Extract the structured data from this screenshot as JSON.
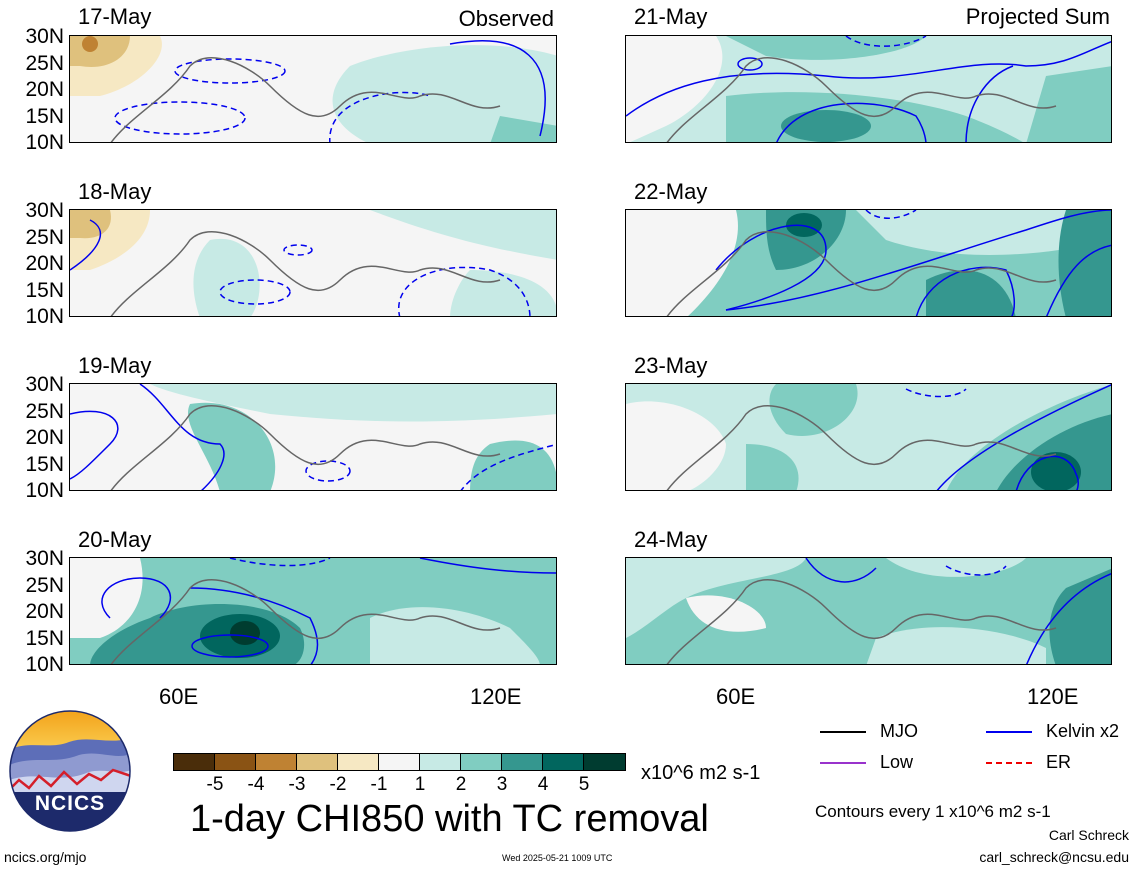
{
  "left_title": "Observed",
  "right_title": "Projected Sum",
  "lat_labels": [
    "30N",
    "25N",
    "20N",
    "15N",
    "10N"
  ],
  "lon_labels_left": [
    "60E",
    "120E"
  ],
  "lon_labels_right": [
    "60E",
    "120E"
  ],
  "panels": [
    {
      "date": "17-May",
      "col": "left"
    },
    {
      "date": "18-May",
      "col": "left"
    },
    {
      "date": "19-May",
      "col": "left"
    },
    {
      "date": "20-May",
      "col": "left"
    },
    {
      "date": "21-May",
      "col": "right"
    },
    {
      "date": "22-May",
      "col": "right"
    },
    {
      "date": "23-May",
      "col": "right"
    },
    {
      "date": "24-May",
      "col": "right"
    }
  ],
  "colorbar": {
    "ticks": [
      "-5",
      "-4",
      "-3",
      "-2",
      "-1",
      "1",
      "2",
      "3",
      "4",
      "5"
    ],
    "units": "x10^6 m2 s-1",
    "colors": [
      "#4a2d0a",
      "#8a5314",
      "#bf8233",
      "#dfc17d",
      "#f6e8c3",
      "#f5f5f5",
      "#c7eae5",
      "#80cdc1",
      "#35978f",
      "#01665e",
      "#003c30"
    ]
  },
  "main_title": "1-day CHI850 with TC removal",
  "legend": {
    "mjo": "MJO",
    "kelvin": "Kelvin x2",
    "low": "Low",
    "er": "ER",
    "colors": {
      "mjo": "#000000",
      "kelvin": "#0000ee",
      "low": "#9932cc",
      "er": "#ee0000"
    }
  },
  "contour_note": "Contours every 1 x10^6 m2 s-1",
  "author": "Carl Schreck",
  "email": "carl_schreck@ncsu.edu",
  "logo_text": "NCICS",
  "url": "ncics.org/mjo",
  "timestamp": "Wed 2025-05-21 1009 UTC",
  "chart_data": [
    {
      "type": "heatmap",
      "title": "17-May",
      "panel_label": "Observed",
      "variable": "CHI850 anomaly",
      "units": "x10^6 m2 s-1",
      "lat_range": [
        10,
        30
      ],
      "lon_range": [
        40,
        130
      ],
      "features": [
        {
          "lon": 45,
          "lat": 27,
          "value": -3
        },
        {
          "lon": 75,
          "lat": 18,
          "value": -1
        },
        {
          "lon": 105,
          "lat": 20,
          "value": 1
        },
        {
          "lon": 125,
          "lat": 12,
          "value": 2
        }
      ]
    },
    {
      "type": "heatmap",
      "title": "18-May",
      "panel_label": "Observed",
      "variable": "CHI850 anomaly",
      "units": "x10^6 m2 s-1",
      "lat_range": [
        10,
        30
      ],
      "lon_range": [
        40,
        130
      ],
      "features": [
        {
          "lon": 45,
          "lat": 26,
          "value": -2
        },
        {
          "lon": 70,
          "lat": 20,
          "value": -1
        },
        {
          "lon": 82,
          "lat": 14,
          "value": 1
        },
        {
          "lon": 125,
          "lat": 12,
          "value": 1
        }
      ]
    },
    {
      "type": "heatmap",
      "title": "19-May",
      "panel_label": "Observed",
      "variable": "CHI850 anomaly",
      "units": "x10^6 m2 s-1",
      "lat_range": [
        10,
        30
      ],
      "lon_range": [
        40,
        130
      ],
      "features": [
        {
          "lon": 50,
          "lat": 20,
          "value": -1
        },
        {
          "lon": 75,
          "lat": 15,
          "value": 2
        },
        {
          "lon": 95,
          "lat": 20,
          "value": -1
        },
        {
          "lon": 125,
          "lat": 14,
          "value": 2
        }
      ]
    },
    {
      "type": "heatmap",
      "title": "20-May",
      "panel_label": "Observed",
      "variable": "CHI850 anomaly",
      "units": "x10^6 m2 s-1",
      "lat_range": [
        10,
        30
      ],
      "lon_range": [
        40,
        130
      ],
      "features": [
        {
          "lon": 48,
          "lat": 22,
          "value": -1
        },
        {
          "lon": 72,
          "lat": 14,
          "value": 5
        },
        {
          "lon": 65,
          "lat": 15,
          "value": 4
        },
        {
          "lon": 100,
          "lat": 25,
          "value": 2
        },
        {
          "lon": 120,
          "lat": 22,
          "value": 2
        }
      ]
    },
    {
      "type": "heatmap",
      "title": "21-May",
      "panel_label": "Projected Sum",
      "variable": "CHI850 anomaly",
      "units": "x10^6 m2 s-1",
      "lat_range": [
        10,
        30
      ],
      "lon_range": [
        40,
        130
      ],
      "features": [
        {
          "lon": 50,
          "lat": 20,
          "value": -1
        },
        {
          "lon": 72,
          "lat": 13,
          "value": 4
        },
        {
          "lon": 80,
          "lat": 25,
          "value": 2
        },
        {
          "lon": 115,
          "lat": 18,
          "value": 2
        }
      ]
    },
    {
      "type": "heatmap",
      "title": "22-May",
      "panel_label": "Projected Sum",
      "variable": "CHI850 anomaly",
      "units": "x10^6 m2 s-1",
      "lat_range": [
        10,
        30
      ],
      "lon_range": [
        40,
        130
      ],
      "features": [
        {
          "lon": 50,
          "lat": 22,
          "value": -1
        },
        {
          "lon": 72,
          "lat": 27,
          "value": 4
        },
        {
          "lon": 105,
          "lat": 15,
          "value": 3
        },
        {
          "lon": 128,
          "lat": 27,
          "value": 4
        }
      ]
    },
    {
      "type": "heatmap",
      "title": "23-May",
      "panel_label": "Projected Sum",
      "variable": "CHI850 anomaly",
      "units": "x10^6 m2 s-1",
      "lat_range": [
        10,
        30
      ],
      "lon_range": [
        40,
        130
      ],
      "features": [
        {
          "lon": 50,
          "lat": 20,
          "value": -1
        },
        {
          "lon": 70,
          "lat": 18,
          "value": 2
        },
        {
          "lon": 110,
          "lat": 15,
          "value": 3
        },
        {
          "lon": 125,
          "lat": 14,
          "value": 4
        }
      ]
    },
    {
      "type": "heatmap",
      "title": "24-May",
      "panel_label": "Projected Sum",
      "variable": "CHI850 anomaly",
      "units": "x10^6 m2 s-1",
      "lat_range": [
        10,
        30
      ],
      "lon_range": [
        40,
        130
      ],
      "features": [
        {
          "lon": 58,
          "lat": 20,
          "value": -1
        },
        {
          "lon": 80,
          "lat": 18,
          "value": 2
        },
        {
          "lon": 100,
          "lat": 16,
          "value": 2
        },
        {
          "lon": 128,
          "lat": 18,
          "value": 3
        }
      ]
    }
  ]
}
